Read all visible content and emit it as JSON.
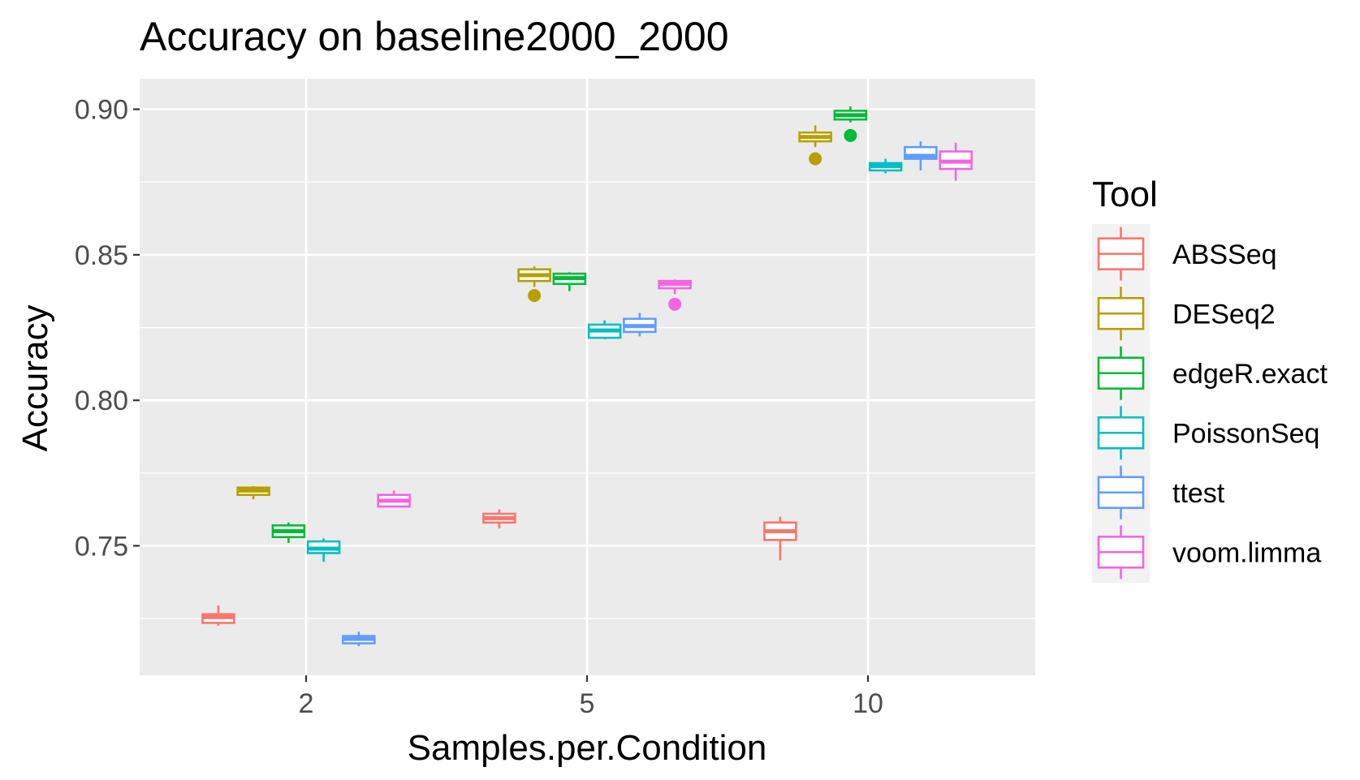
{
  "chart_data": {
    "type": "boxplot",
    "title": "Accuracy on baseline2000_2000",
    "xlabel": "Samples.per.Condition",
    "ylabel": "Accuracy",
    "categories": [
      "2",
      "5",
      "10"
    ],
    "y_ticks": [
      "0.75",
      "0.80",
      "0.85",
      "0.90"
    ],
    "y_tick_values": [
      0.75,
      0.8,
      0.85,
      0.9
    ],
    "ylim": [
      0.7055,
      0.9105
    ],
    "grid": true,
    "legend": {
      "title": "Tool",
      "position": "right"
    },
    "series": [
      {
        "name": "ABSSeq",
        "color": "#F8766D",
        "boxes": [
          {
            "category": "2",
            "min": 0.7225,
            "q1": 0.7235,
            "median": 0.7255,
            "q3": 0.7265,
            "max": 0.7295,
            "outliers": []
          },
          {
            "category": "5",
            "min": 0.756,
            "q1": 0.758,
            "median": 0.7595,
            "q3": 0.761,
            "max": 0.7625,
            "outliers": []
          },
          {
            "category": "10",
            "min": 0.745,
            "q1": 0.752,
            "median": 0.755,
            "q3": 0.758,
            "max": 0.76,
            "outliers": []
          }
        ]
      },
      {
        "name": "DESeq2",
        "color": "#B79F00",
        "boxes": [
          {
            "category": "2",
            "min": 0.766,
            "q1": 0.7675,
            "median": 0.769,
            "q3": 0.77,
            "max": 0.7705,
            "outliers": []
          },
          {
            "category": "5",
            "min": 0.839,
            "q1": 0.841,
            "median": 0.843,
            "q3": 0.845,
            "max": 0.846,
            "outliers": [
              0.836
            ]
          },
          {
            "category": "10",
            "min": 0.887,
            "q1": 0.889,
            "median": 0.8905,
            "q3": 0.892,
            "max": 0.8945,
            "outliers": [
              0.883
            ]
          }
        ]
      },
      {
        "name": "edgeR.exact",
        "color": "#00BA38",
        "boxes": [
          {
            "category": "2",
            "min": 0.751,
            "q1": 0.753,
            "median": 0.755,
            "q3": 0.757,
            "max": 0.758,
            "outliers": []
          },
          {
            "category": "5",
            "min": 0.8375,
            "q1": 0.84,
            "median": 0.842,
            "q3": 0.8435,
            "max": 0.844,
            "outliers": []
          },
          {
            "category": "10",
            "min": 0.8955,
            "q1": 0.8965,
            "median": 0.898,
            "q3": 0.8995,
            "max": 0.901,
            "outliers": [
              0.891
            ]
          }
        ]
      },
      {
        "name": "PoissonSeq",
        "color": "#00BFC4",
        "boxes": [
          {
            "category": "2",
            "min": 0.7445,
            "q1": 0.7475,
            "median": 0.749,
            "q3": 0.7515,
            "max": 0.7525,
            "outliers": []
          },
          {
            "category": "5",
            "min": 0.821,
            "q1": 0.8215,
            "median": 0.824,
            "q3": 0.826,
            "max": 0.8275,
            "outliers": []
          },
          {
            "category": "10",
            "min": 0.878,
            "q1": 0.879,
            "median": 0.8805,
            "q3": 0.8815,
            "max": 0.883,
            "outliers": []
          }
        ]
      },
      {
        "name": "ttest",
        "color": "#619CFF",
        "boxes": [
          {
            "category": "2",
            "min": 0.7155,
            "q1": 0.7165,
            "median": 0.718,
            "q3": 0.719,
            "max": 0.7205,
            "outliers": []
          },
          {
            "category": "5",
            "min": 0.822,
            "q1": 0.8235,
            "median": 0.8255,
            "q3": 0.828,
            "max": 0.83,
            "outliers": []
          },
          {
            "category": "10",
            "min": 0.879,
            "q1": 0.883,
            "median": 0.884,
            "q3": 0.887,
            "max": 0.889,
            "outliers": []
          }
        ]
      },
      {
        "name": "voom.limma",
        "color": "#F564E3",
        "boxes": [
          {
            "category": "2",
            "min": 0.7635,
            "q1": 0.7635,
            "median": 0.7655,
            "q3": 0.7675,
            "max": 0.769,
            "outliers": []
          },
          {
            "category": "5",
            "min": 0.8365,
            "q1": 0.8385,
            "median": 0.84,
            "q3": 0.841,
            "max": 0.8415,
            "outliers": [
              0.833
            ]
          },
          {
            "category": "10",
            "min": 0.8755,
            "q1": 0.8795,
            "median": 0.882,
            "q3": 0.8855,
            "max": 0.8885,
            "outliers": []
          }
        ]
      }
    ]
  }
}
